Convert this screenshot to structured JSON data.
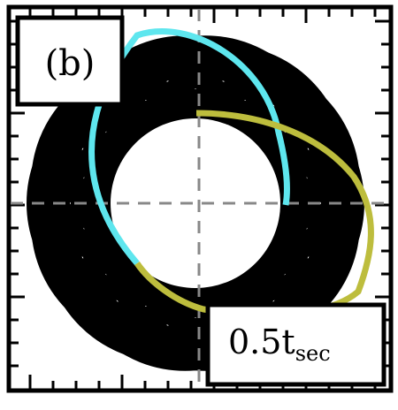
{
  "panel_label": "(b)",
  "time_label": {
    "value": "0.5t",
    "subscript": "sec"
  },
  "colors": {
    "ring": "#000000",
    "background": "#ffffff",
    "trajectory_1": "#5ee6ee",
    "trajectory_2": "#bdbd3d",
    "crosshair": "#888888",
    "frame": "#000000"
  }
}
